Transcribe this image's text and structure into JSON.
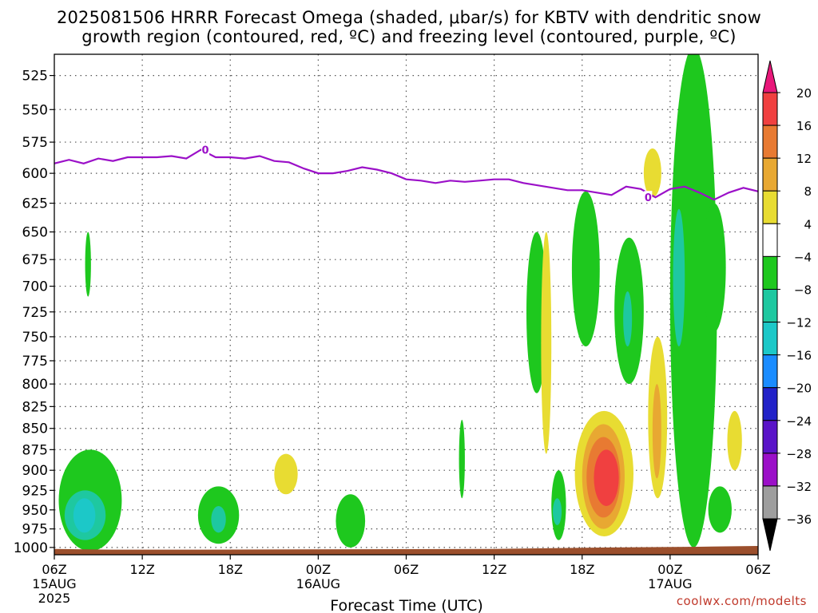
{
  "title": {
    "line1": "2025081506 HRRR Forecast Omega (shaded, μbar/s) for KBTV with dendritic snow",
    "line2": "growth region (contoured, red, ºC) and freezing level (contoured, purple, ºC)"
  },
  "credit": "coolwx.com/modelts",
  "colors": {
    "freezing_level": "#9b10c8",
    "terrain": "#9b4f2c",
    "bins": [
      "#000000",
      "#9e9e9e",
      "#9b10c8",
      "#5a14c8",
      "#2222c8",
      "#1a8cff",
      "#1cc8c8",
      "#1ec8a0",
      "#1ec81e",
      "#ffffff",
      "#e8dc32",
      "#e8a832",
      "#e87a32",
      "#f04040",
      "#e8187a"
    ]
  },
  "chart_data": {
    "type": "contour-time-height",
    "xlabel": "Forecast Time (UTC)",
    "ylabel": "",
    "x_ticks": [
      {
        "label": "06Z",
        "date": "15AUG",
        "year": "2025"
      },
      {
        "label": "12Z"
      },
      {
        "label": "18Z"
      },
      {
        "label": "00Z",
        "date": "16AUG"
      },
      {
        "label": "06Z"
      },
      {
        "label": "12Z"
      },
      {
        "label": "18Z"
      },
      {
        "label": "00Z",
        "date": "17AUG"
      },
      {
        "label": "06Z"
      }
    ],
    "x_range_hours": [
      0,
      48
    ],
    "y_levels_hpa": [
      525,
      550,
      575,
      600,
      625,
      650,
      675,
      700,
      725,
      750,
      775,
      800,
      825,
      850,
      875,
      900,
      925,
      950,
      975,
      1000
    ],
    "y_range_hpa": [
      510,
      1010
    ],
    "colorbar": {
      "labels": [
        "20",
        "16",
        "12",
        "8",
        "4",
        "−4",
        "−8",
        "−12",
        "−16",
        "−20",
        "−24",
        "−28",
        "−32",
        "−36"
      ],
      "bins": [
        {
          "range": [
            20,
            null
          ],
          "color": "#e8187a"
        },
        {
          "range": [
            16,
            20
          ],
          "color": "#f04040"
        },
        {
          "range": [
            12,
            16
          ],
          "color": "#e87a32"
        },
        {
          "range": [
            8,
            12
          ],
          "color": "#e8a832"
        },
        {
          "range": [
            4,
            8
          ],
          "color": "#e8dc32"
        },
        {
          "range": [
            -4,
            4
          ],
          "color": "#ffffff"
        },
        {
          "range": [
            -8,
            -4
          ],
          "color": "#1ec81e"
        },
        {
          "range": [
            -12,
            -8
          ],
          "color": "#1ec8a0"
        },
        {
          "range": [
            -16,
            -12
          ],
          "color": "#1cc8c8"
        },
        {
          "range": [
            -20,
            -16
          ],
          "color": "#1a8cff"
        },
        {
          "range": [
            -24,
            -20
          ],
          "color": "#2222c8"
        },
        {
          "range": [
            -28,
            -24
          ],
          "color": "#5a14c8"
        },
        {
          "range": [
            -32,
            -28
          ],
          "color": "#9b10c8"
        },
        {
          "range": [
            -36,
            -32
          ],
          "color": "#9e9e9e"
        },
        {
          "range": [
            null,
            -36
          ],
          "color": "#000000"
        }
      ]
    },
    "freezing_level": {
      "label": "0",
      "hours": [
        0,
        1,
        2,
        3,
        4,
        5,
        6,
        7,
        8,
        9,
        10,
        11,
        12,
        13,
        14,
        15,
        16,
        17,
        18,
        19,
        20,
        21,
        22,
        23,
        24,
        25,
        26,
        27,
        28,
        29,
        30,
        31,
        32,
        33,
        34,
        35,
        36,
        37,
        38,
        39,
        40,
        41,
        42,
        43,
        44,
        45,
        46,
        47,
        48
      ],
      "pressure_hpa": [
        592,
        589,
        592,
        588,
        590,
        587,
        587,
        587,
        586,
        588,
        581,
        587,
        587,
        588,
        586,
        590,
        591,
        596,
        600,
        600,
        598,
        595,
        597,
        600,
        605,
        606,
        608,
        606,
        607,
        606,
        605,
        605,
        608,
        610,
        612,
        614,
        614,
        616,
        618,
        611,
        613,
        620,
        613,
        611,
        616,
        622,
        616,
        612,
        615
      ]
    },
    "omega_regions": [
      {
        "range": [
          -8,
          -4
        ],
        "hours": [
          0.3,
          4.6
        ],
        "pressure_hpa": [
          875,
          1005
        ]
      },
      {
        "range": [
          -12,
          -8
        ],
        "hours": [
          0.7,
          3.5
        ],
        "pressure_hpa": [
          925,
          990
        ]
      },
      {
        "range": [
          -16,
          -12
        ],
        "hours": [
          1.3,
          2.8
        ],
        "pressure_hpa": [
          935,
          980
        ]
      },
      {
        "range": [
          -8,
          -4
        ],
        "hours": [
          2.1,
          2.5
        ],
        "pressure_hpa": [
          650,
          710
        ]
      },
      {
        "range": [
          -8,
          -4
        ],
        "hours": [
          9.8,
          12.6
        ],
        "pressure_hpa": [
          920,
          995
        ]
      },
      {
        "range": [
          -12,
          -8
        ],
        "hours": [
          10.7,
          11.7
        ],
        "pressure_hpa": [
          945,
          980
        ]
      },
      {
        "range": [
          4,
          8
        ],
        "hours": [
          15.0,
          16.6
        ],
        "pressure_hpa": [
          880,
          930
        ]
      },
      {
        "range": [
          -8,
          -4
        ],
        "hours": [
          19.2,
          21.2
        ],
        "pressure_hpa": [
          930,
          1000
        ]
      },
      {
        "range": [
          -8,
          -4
        ],
        "hours": [
          27.6,
          28.0
        ],
        "pressure_hpa": [
          840,
          935
        ]
      },
      {
        "range": [
          -8,
          -4
        ],
        "hours": [
          32.2,
          33.6
        ],
        "pressure_hpa": [
          650,
          810
        ]
      },
      {
        "range": [
          4,
          8
        ],
        "hours": [
          33.2,
          33.9
        ],
        "pressure_hpa": [
          650,
          880
        ]
      },
      {
        "range": [
          -8,
          -4
        ],
        "hours": [
          33.9,
          34.9
        ],
        "pressure_hpa": [
          900,
          990
        ]
      },
      {
        "range": [
          -12,
          -8
        ],
        "hours": [
          34.0,
          34.6
        ],
        "pressure_hpa": [
          935,
          970
        ]
      },
      {
        "range": [
          -8,
          -4
        ],
        "hours": [
          35.3,
          37.2
        ],
        "pressure_hpa": [
          615,
          760
        ]
      },
      {
        "range": [
          4,
          8
        ],
        "hours": [
          35.5,
          39.5
        ],
        "pressure_hpa": [
          830,
          985
        ]
      },
      {
        "range": [
          8,
          12
        ],
        "hours": [
          36.0,
          38.9
        ],
        "pressure_hpa": [
          845,
          975
        ]
      },
      {
        "range": [
          12,
          16
        ],
        "hours": [
          36.3,
          38.6
        ],
        "pressure_hpa": [
          860,
          960
        ]
      },
      {
        "range": [
          16,
          20
        ],
        "hours": [
          36.8,
          38.5
        ],
        "pressure_hpa": [
          875,
          945
        ]
      },
      {
        "range": [
          -8,
          -4
        ],
        "hours": [
          38.2,
          40.2
        ],
        "pressure_hpa": [
          655,
          800
        ]
      },
      {
        "range": [
          -12,
          -8
        ],
        "hours": [
          38.8,
          39.4
        ],
        "pressure_hpa": [
          705,
          760
        ]
      },
      {
        "range": [
          4,
          8
        ],
        "hours": [
          40.2,
          41.4
        ],
        "pressure_hpa": [
          580,
          620
        ]
      },
      {
        "range": [
          4,
          8
        ],
        "hours": [
          40.5,
          41.8
        ],
        "pressure_hpa": [
          750,
          935
        ]
      },
      {
        "range": [
          8,
          12
        ],
        "hours": [
          40.8,
          41.4
        ],
        "pressure_hpa": [
          800,
          910
        ]
      },
      {
        "range": [
          -8,
          -4
        ],
        "hours": [
          42.0,
          45.2
        ],
        "pressure_hpa": [
          505,
          1000
        ]
      },
      {
        "range": [
          -12,
          -8
        ],
        "hours": [
          42.2,
          43.0
        ],
        "pressure_hpa": [
          630,
          760
        ]
      },
      {
        "range": [
          -8,
          -4
        ],
        "hours": [
          44.2,
          45.8
        ],
        "pressure_hpa": [
          625,
          745
        ]
      },
      {
        "range": [
          -8,
          -4
        ],
        "hours": [
          44.6,
          46.2
        ],
        "pressure_hpa": [
          920,
          980
        ]
      },
      {
        "range": [
          4,
          8
        ],
        "hours": [
          45.9,
          46.9
        ],
        "pressure_hpa": [
          830,
          900
        ]
      }
    ]
  }
}
